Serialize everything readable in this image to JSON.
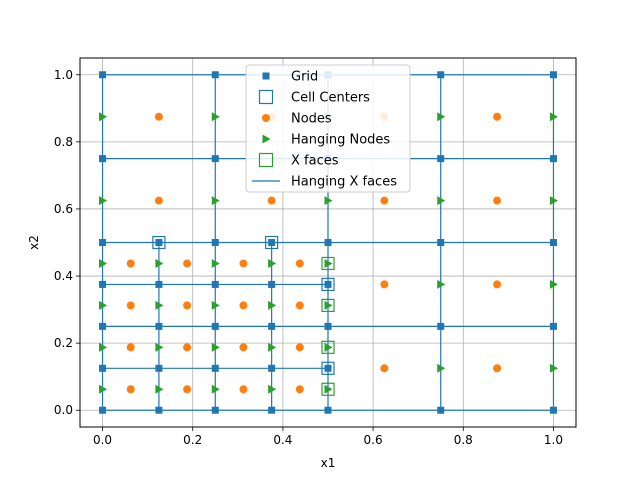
{
  "chart_data": {
    "type": "scatter",
    "title": "",
    "xlabel": "x1",
    "ylabel": "x2",
    "xlim": [
      -0.05,
      1.05
    ],
    "ylim": [
      -0.05,
      1.05
    ],
    "xticks": [
      "0.0",
      "0.2",
      "0.4",
      "0.6",
      "0.8",
      "1.0"
    ],
    "yticks": [
      "0.0",
      "0.2",
      "0.4",
      "0.6",
      "0.8",
      "1.0"
    ],
    "grid": true,
    "legend_position": "top-center",
    "colors": {
      "blue": "#1f77b4",
      "orange": "#ff7f0e",
      "green": "#2ca02c",
      "grid": "#b0b0b0"
    },
    "legend": [
      {
        "label": "Grid",
        "marker": "square-filled",
        "color": "#1f77b4"
      },
      {
        "label": "Cell Centers",
        "marker": "square-open",
        "color": "#1f77b4"
      },
      {
        "label": "Nodes",
        "marker": "circle",
        "color": "#ff7f0e"
      },
      {
        "label": "Hanging Nodes",
        "marker": "triangle-right",
        "color": "#2ca02c"
      },
      {
        "label": "X faces",
        "marker": "square-open",
        "color": "#2ca02c"
      },
      {
        "label": "Hanging X faces",
        "marker": "line",
        "color": "#1f77b4"
      }
    ],
    "series": [
      {
        "name": "Grid",
        "grid_lines": [
          {
            "from": [
              0,
              0
            ],
            "to": [
              0,
              1
            ]
          },
          {
            "from": [
              0.25,
              0
            ],
            "to": [
              0.25,
              1
            ]
          },
          {
            "from": [
              0.5,
              0
            ],
            "to": [
              0.5,
              1
            ]
          },
          {
            "from": [
              0.75,
              0
            ],
            "to": [
              0.75,
              1
            ]
          },
          {
            "from": [
              1,
              0
            ],
            "to": [
              1,
              1
            ]
          },
          {
            "from": [
              0.125,
              0
            ],
            "to": [
              0.125,
              0.5
            ]
          },
          {
            "from": [
              0.375,
              0
            ],
            "to": [
              0.375,
              0.5
            ]
          },
          {
            "from": [
              0,
              0
            ],
            "to": [
              1,
              0
            ]
          },
          {
            "from": [
              0,
              0.25
            ],
            "to": [
              1,
              0.25
            ]
          },
          {
            "from": [
              0,
              0.5
            ],
            "to": [
              1,
              0.5
            ]
          },
          {
            "from": [
              0,
              0.75
            ],
            "to": [
              1,
              0.75
            ]
          },
          {
            "from": [
              0,
              1
            ],
            "to": [
              1,
              1
            ]
          },
          {
            "from": [
              0,
              0.125
            ],
            "to": [
              0.5,
              0.125
            ]
          },
          {
            "from": [
              0,
              0.375
            ],
            "to": [
              0.5,
              0.375
            ]
          }
        ],
        "points": [
          [
            0,
            0
          ],
          [
            0.125,
            0
          ],
          [
            0.25,
            0
          ],
          [
            0.375,
            0
          ],
          [
            0.5,
            0
          ],
          [
            0.75,
            0
          ],
          [
            1,
            0
          ],
          [
            0,
            0.125
          ],
          [
            0.125,
            0.125
          ],
          [
            0.25,
            0.125
          ],
          [
            0.375,
            0.125
          ],
          [
            0.5,
            0.125
          ],
          [
            0,
            0.25
          ],
          [
            0.125,
            0.25
          ],
          [
            0.25,
            0.25
          ],
          [
            0.375,
            0.25
          ],
          [
            0.5,
            0.25
          ],
          [
            0.75,
            0.25
          ],
          [
            1,
            0.25
          ],
          [
            0,
            0.375
          ],
          [
            0.125,
            0.375
          ],
          [
            0.25,
            0.375
          ],
          [
            0.375,
            0.375
          ],
          [
            0.5,
            0.375
          ],
          [
            0,
            0.5
          ],
          [
            0.125,
            0.5
          ],
          [
            0.25,
            0.5
          ],
          [
            0.375,
            0.5
          ],
          [
            0.5,
            0.5
          ],
          [
            0.75,
            0.5
          ],
          [
            1,
            0.5
          ],
          [
            0,
            0.75
          ],
          [
            0.25,
            0.75
          ],
          [
            0.5,
            0.75
          ],
          [
            0.75,
            0.75
          ],
          [
            1,
            0.75
          ],
          [
            0,
            1
          ],
          [
            0.25,
            1
          ],
          [
            0.5,
            1
          ],
          [
            0.75,
            1
          ],
          [
            1,
            1
          ]
        ]
      },
      {
        "name": "Cell Centers",
        "points": [
          [
            0.125,
            0.5
          ],
          [
            0.375,
            0.5
          ],
          [
            0.5,
            0.375
          ],
          [
            0.5,
            0.125
          ]
        ]
      },
      {
        "name": "Nodes",
        "points": [
          [
            0.0625,
            0.0625
          ],
          [
            0.1875,
            0.0625
          ],
          [
            0.3125,
            0.0625
          ],
          [
            0.4375,
            0.0625
          ],
          [
            0.0625,
            0.1875
          ],
          [
            0.1875,
            0.1875
          ],
          [
            0.3125,
            0.1875
          ],
          [
            0.4375,
            0.1875
          ],
          [
            0.0625,
            0.3125
          ],
          [
            0.1875,
            0.3125
          ],
          [
            0.3125,
            0.3125
          ],
          [
            0.4375,
            0.3125
          ],
          [
            0.0625,
            0.4375
          ],
          [
            0.1875,
            0.4375
          ],
          [
            0.3125,
            0.4375
          ],
          [
            0.4375,
            0.4375
          ],
          [
            0.625,
            0.125
          ],
          [
            0.875,
            0.125
          ],
          [
            0.625,
            0.375
          ],
          [
            0.875,
            0.375
          ],
          [
            0.125,
            0.625
          ],
          [
            0.375,
            0.625
          ],
          [
            0.625,
            0.625
          ],
          [
            0.875,
            0.625
          ],
          [
            0.125,
            0.875
          ],
          [
            0.375,
            0.875
          ],
          [
            0.625,
            0.875
          ],
          [
            0.875,
            0.875
          ]
        ]
      },
      {
        "name": "Hanging Nodes",
        "points": [
          [
            0,
            0.0625
          ],
          [
            0.125,
            0.0625
          ],
          [
            0.25,
            0.0625
          ],
          [
            0.375,
            0.0625
          ],
          [
            0.5,
            0.0625
          ],
          [
            0,
            0.1875
          ],
          [
            0.125,
            0.1875
          ],
          [
            0.25,
            0.1875
          ],
          [
            0.375,
            0.1875
          ],
          [
            0.5,
            0.1875
          ],
          [
            0,
            0.3125
          ],
          [
            0.125,
            0.3125
          ],
          [
            0.25,
            0.3125
          ],
          [
            0.375,
            0.3125
          ],
          [
            0.5,
            0.3125
          ],
          [
            0,
            0.4375
          ],
          [
            0.125,
            0.4375
          ],
          [
            0.25,
            0.4375
          ],
          [
            0.375,
            0.4375
          ],
          [
            0.5,
            0.4375
          ],
          [
            0.75,
            0.125
          ],
          [
            1,
            0.125
          ],
          [
            0.75,
            0.375
          ],
          [
            1,
            0.375
          ],
          [
            0,
            0.625
          ],
          [
            0.25,
            0.625
          ],
          [
            0.5,
            0.625
          ],
          [
            0.75,
            0.625
          ],
          [
            1,
            0.625
          ],
          [
            0,
            0.875
          ],
          [
            0.25,
            0.875
          ],
          [
            0.5,
            0.875
          ],
          [
            0.75,
            0.875
          ],
          [
            1,
            0.875
          ]
        ]
      },
      {
        "name": "X faces",
        "points": [
          [
            0.5,
            0.0625
          ],
          [
            0.5,
            0.1875
          ],
          [
            0.5,
            0.3125
          ],
          [
            0.5,
            0.4375
          ]
        ]
      }
    ]
  }
}
